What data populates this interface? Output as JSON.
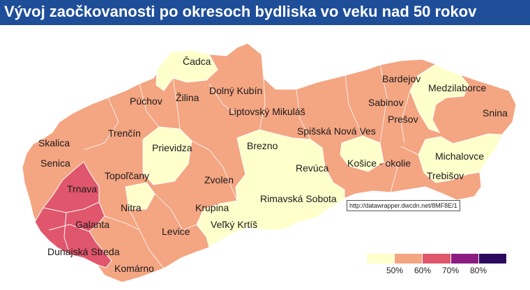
{
  "header": {
    "title": "Vývoj zaočkovanosti po okresoch bydliska vo veku nad 50 rokov"
  },
  "map": {
    "labels": {
      "cadca": "Čadca",
      "puchov": "Púchov",
      "zilina": "Žilina",
      "dolny_kubin": "Dolný Kubín",
      "bardejov": "Bardejov",
      "medzilaborce": "Medzilaborce",
      "sabinov": "Sabinov",
      "snina": "Snina",
      "liptovsky_mikulas": "Liptovský Mikuláš",
      "presov": "Prešov",
      "trencin": "Trenčín",
      "spisska_nova_ves": "Spišská Nová Ves",
      "skalica": "Skalica",
      "prievidza": "Prievidza",
      "brezno": "Brezno",
      "michalovce": "Michalovce",
      "senica": "Senica",
      "kosice_okolie": "Košice - okolie",
      "revuca": "Revúca",
      "topolcany": "Topoľčany",
      "trebisov": "Trebišov",
      "zvolen": "Zvolen",
      "trnava": "Trnava",
      "rimavska_sobota": "Rimavská Sobota",
      "nitra": "Nitra",
      "krupina": "Krupina",
      "galanta": "Galanta",
      "velky_krtis": "Veľký Krtíš",
      "levice": "Levice",
      "dunajska_streda": "Dunajská Streda",
      "komarno": "Komárno"
    },
    "colors": {
      "below_50": "#ffffcc",
      "50_60": "#f4a582",
      "60_70": "#e0566c",
      "70_80": "#8b1d82",
      "80_plus": "#2d0a5e",
      "border": "#ffffff"
    }
  },
  "tooltip": {
    "text": "http://datawrapper.dwcdn.net/8MF8E/1"
  },
  "legend": {
    "colors": [
      "#ffffcc",
      "#f4a582",
      "#e0566c",
      "#8b1d82",
      "#2d0a5e"
    ],
    "ticks": [
      "50%",
      "60%",
      "70%",
      "80%"
    ]
  }
}
